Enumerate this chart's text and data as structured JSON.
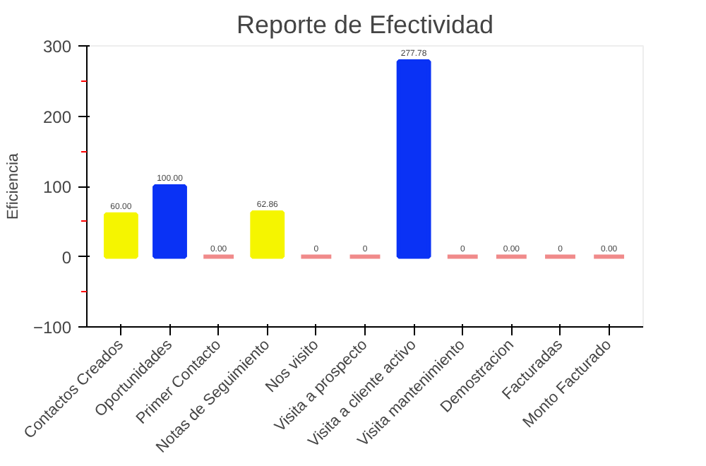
{
  "chart_data": {
    "type": "bar",
    "title": "Reporte de Efectividad",
    "ylabel": "Eficiencia",
    "categories": [
      "Contactos Creados",
      "Oportunidades",
      "Primer Contacto",
      "Notas de Seguimiento",
      "Nos visito",
      "Visita a prospecto",
      "Visita a cliente activo",
      "Visita mantenimiento",
      "Demostracion",
      "Facturadas",
      "Monto Facturado"
    ],
    "values": [
      60,
      100,
      0,
      62.86,
      0,
      0,
      277.78,
      0,
      0,
      0,
      0
    ],
    "colors": [
      "#f5f500",
      "#0a32f5",
      "#f08a8a",
      "#f5f500",
      "#f08a8a",
      "#f08a8a",
      "#0a32f5",
      "#f08a8a",
      "#f08a8a",
      "#f08a8a",
      "#f08a8a"
    ],
    "value_labels": [
      "60.00",
      "100.00",
      "0.00",
      "62.86",
      "0",
      "0",
      "277.78",
      "0",
      "0.00",
      "0",
      "0.00"
    ],
    "ylim": [
      -100,
      300
    ],
    "yticks": [
      -100,
      0,
      100,
      200,
      300
    ],
    "grid": false
  }
}
